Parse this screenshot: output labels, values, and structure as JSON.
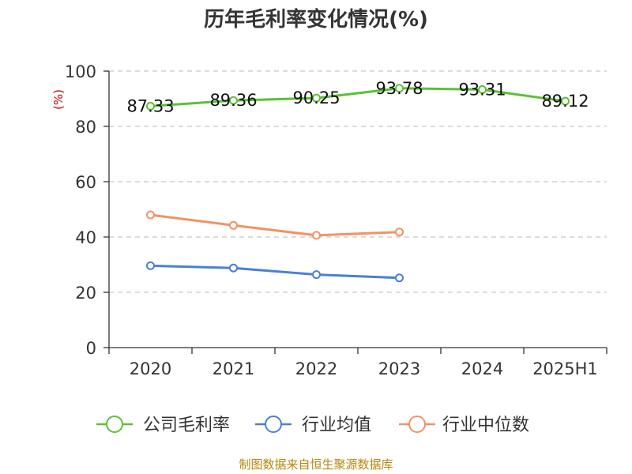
{
  "chart_data": {
    "type": "line",
    "title": "历年毛利率变化情况(%)",
    "ylabel": "(%)",
    "xlabel": "",
    "categories": [
      "2020",
      "2021",
      "2022",
      "2023",
      "2024",
      "2025H1"
    ],
    "ylim": [
      0,
      100
    ],
    "yticks": [
      0,
      20,
      40,
      60,
      80,
      100
    ],
    "grid": true,
    "legend_position": "bottom",
    "series": [
      {
        "name": "公司毛利率",
        "color": "#5cc034",
        "values": [
          87.33,
          89.36,
          90.25,
          93.78,
          93.31,
          89.12
        ],
        "labels": [
          "87.33",
          "89.36",
          "90.25",
          "93.78",
          "93.31",
          "89.12"
        ],
        "show_labels": true
      },
      {
        "name": "行业均值",
        "color": "#4a7fd8",
        "values": [
          29.6,
          28.8,
          26.4,
          25.2,
          null,
          null
        ],
        "show_labels": false
      },
      {
        "name": "行业中位数",
        "color": "#f59161",
        "values": [
          48.0,
          44.2,
          40.6,
          41.8,
          null,
          null
        ],
        "show_labels": false
      }
    ]
  },
  "source_note": "制图数据来自恒生聚源数据库"
}
